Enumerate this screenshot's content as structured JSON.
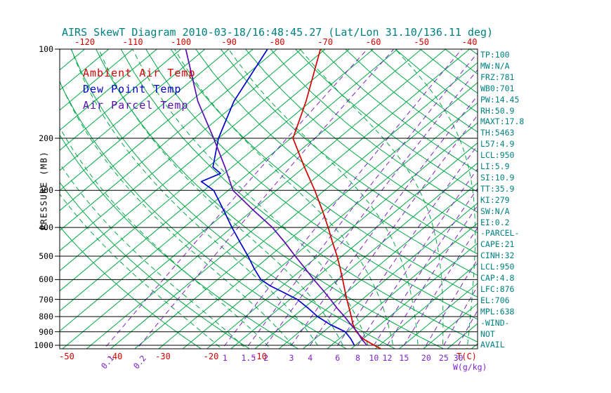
{
  "title": "AIRS SkewT Diagram 2010-03-18/16:48:45.27 (Lat/Lon 31.10/136.11 deg)",
  "colors": {
    "title": "#008080",
    "stats": "#008080",
    "temp_labels": "#d40000",
    "mix_labels": "#7d22cc",
    "isotherm": "#00a845",
    "dry_adiabat": "#00a845",
    "moist_adiabat": "#00a845",
    "mixing_line": "#7d22cc",
    "pressure_line": "#000000",
    "ambient": "#d40000",
    "dewpoint": "#0000cc",
    "parcel": "#5c0db0"
  },
  "legend": [
    {
      "label": "Ambient Air Temp",
      "color": "#d40000"
    },
    {
      "label": "Dew Point Temp",
      "color": "#0000cc"
    },
    {
      "label": "Air Parcel Temp",
      "color": "#5c0db0"
    }
  ],
  "axes": {
    "left_label": "PRESSURE (MB)",
    "pressure_ticks": [
      100,
      200,
      300,
      400,
      500,
      600,
      700,
      800,
      900,
      1000
    ],
    "top_temp_ticks": [
      -120,
      -110,
      -100,
      -90,
      -80,
      -70,
      -60,
      -50,
      -40
    ],
    "bottom_temp_ticks": [
      -50,
      -40,
      -30,
      -20,
      -10
    ],
    "bottom_temp_unit": "T(C)",
    "mix_ratio_ticks": [
      0.1,
      0.2,
      1,
      1.5,
      2,
      3,
      4,
      6,
      8,
      10,
      12,
      15,
      20,
      25,
      30
    ],
    "mix_unit": "W(g/kg)"
  },
  "stats_panel": [
    "TP:100",
    "MW:N/A",
    "FRZ:781",
    "WB0:701",
    "PW:14.45",
    "RH:50.9",
    "MAXT:17.8",
    "TH:5463",
    "L57:4.9",
    "LCL:950",
    "LI:5.9",
    "SI:10.9",
    "TT:35.9",
    "KI:279",
    "SW:N/A",
    "EI:0.2",
    "-PARCEL-",
    "CAPE:21",
    "CINH:32",
    "LCL:950",
    "CAP:4.8",
    "LFC:876",
    "EL:706",
    "MPL:638",
    "-WIND-",
    "NOT",
    "AVAIL"
  ],
  "chart_data": {
    "type": "line",
    "title": "AIRS SkewT Diagram 2010-03-18/16:48:45.27 (Lat/Lon 31.10/136.11 deg)",
    "x_axis": {
      "label": "Temperature (C)",
      "skewed": true,
      "bottom_range": [
        -50,
        35
      ],
      "top_range": [
        -120,
        -40
      ],
      "tick_step": 10
    },
    "y_axis": {
      "label": "PRESSURE (MB)",
      "scale": "log",
      "range": [
        100,
        1050
      ]
    },
    "grid": {
      "isotherms_C": {
        "min": -125,
        "max": 40,
        "step": 5
      },
      "dry_adiabats_K": {
        "min": 250,
        "max": 460,
        "step": 10
      },
      "moist_adiabats_C": {
        "min": -15,
        "max": 40,
        "step": 5
      },
      "mixing_ratio_g_kg": [
        0.1,
        0.2,
        1,
        1.5,
        2,
        3,
        4,
        6,
        8,
        10,
        12,
        15,
        20,
        25,
        30
      ]
    },
    "series": [
      {
        "name": "Ambient Air Temp",
        "color": "#d40000",
        "units": [
          "mb",
          "C"
        ],
        "points_p_mb_t_c": [
          [
            100,
            -71
          ],
          [
            150,
            -61
          ],
          [
            200,
            -54.5
          ],
          [
            250,
            -45
          ],
          [
            300,
            -37
          ],
          [
            350,
            -30.5
          ],
          [
            400,
            -25
          ],
          [
            450,
            -20.3
          ],
          [
            500,
            -16
          ],
          [
            550,
            -12.3
          ],
          [
            600,
            -9
          ],
          [
            650,
            -6
          ],
          [
            700,
            -3.2
          ],
          [
            750,
            -0.5
          ],
          [
            800,
            2
          ],
          [
            850,
            4.3
          ],
          [
            900,
            6.8
          ],
          [
            950,
            9.9
          ],
          [
            1000,
            13.9
          ],
          [
            1035,
            16.8
          ]
        ]
      },
      {
        "name": "Dew Point Temp",
        "color": "#0000cc",
        "units": [
          "mb",
          "C"
        ],
        "points_p_mb_t_c": [
          [
            100,
            -82
          ],
          [
            150,
            -76
          ],
          [
            200,
            -70
          ],
          [
            250,
            -64
          ],
          [
            263,
            -60.8
          ],
          [
            280,
            -62.8
          ],
          [
            300,
            -58
          ],
          [
            350,
            -51
          ],
          [
            400,
            -45
          ],
          [
            450,
            -39.5
          ],
          [
            500,
            -34.5
          ],
          [
            550,
            -30.2
          ],
          [
            600,
            -26
          ],
          [
            630,
            -22.5
          ],
          [
            660,
            -18.5
          ],
          [
            700,
            -13.5
          ],
          [
            750,
            -9
          ],
          [
            800,
            -5
          ],
          [
            850,
            -0.5
          ],
          [
            900,
            4.5
          ],
          [
            950,
            7.4
          ],
          [
            1000,
            9.8
          ]
        ]
      },
      {
        "name": "Air Parcel Temp",
        "color": "#5c0db0",
        "units": [
          "mb",
          "C"
        ],
        "points_p_mb_t_c": [
          [
            100,
            -99
          ],
          [
            150,
            -83.5
          ],
          [
            200,
            -71
          ],
          [
            250,
            -61.5
          ],
          [
            300,
            -54
          ],
          [
            350,
            -44.8
          ],
          [
            400,
            -36.6
          ],
          [
            450,
            -30.2
          ],
          [
            500,
            -24.7
          ],
          [
            550,
            -19.6
          ],
          [
            600,
            -15
          ],
          [
            650,
            -10.6
          ],
          [
            700,
            -6.6
          ],
          [
            750,
            -3
          ],
          [
            800,
            0.6
          ],
          [
            850,
            3.8
          ],
          [
            900,
            7
          ],
          [
            950,
            9.6
          ],
          [
            1000,
            12.4
          ]
        ]
      }
    ]
  }
}
